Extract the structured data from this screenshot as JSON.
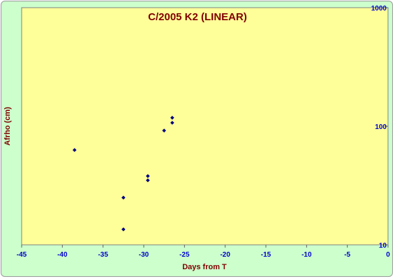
{
  "chart_data": {
    "type": "scatter",
    "title": "C/2005 K2 (LINEAR)",
    "xlabel": "Days from T",
    "ylabel": "Afrho (cm)",
    "xlim": [
      -45,
      0
    ],
    "ylim": [
      10,
      1000
    ],
    "y_scale": "log",
    "x_ticks": [
      "-45",
      "-40",
      "-35",
      "-30",
      "-25",
      "-20",
      "-15",
      "-10",
      "-5",
      "0"
    ],
    "y_ticks": [
      {
        "value": 10,
        "label": "10"
      },
      {
        "value": 100,
        "label": "100"
      },
      {
        "value": 1000,
        "label": "1000"
      }
    ],
    "series": [
      {
        "marker": "diamond",
        "color": "#000080",
        "points": [
          {
            "x": -38.5,
            "y": 63
          },
          {
            "x": -32.5,
            "y": 25
          },
          {
            "x": -32.5,
            "y": 13.5
          },
          {
            "x": -29.5,
            "y": 38
          },
          {
            "x": -29.5,
            "y": 35
          },
          {
            "x": -27.5,
            "y": 92
          },
          {
            "x": -26.5,
            "y": 118
          },
          {
            "x": -26.5,
            "y": 107
          }
        ]
      }
    ],
    "grid": false,
    "legend": "none",
    "plot_background": "#ffff99",
    "page_background": "#ccffcc"
  }
}
